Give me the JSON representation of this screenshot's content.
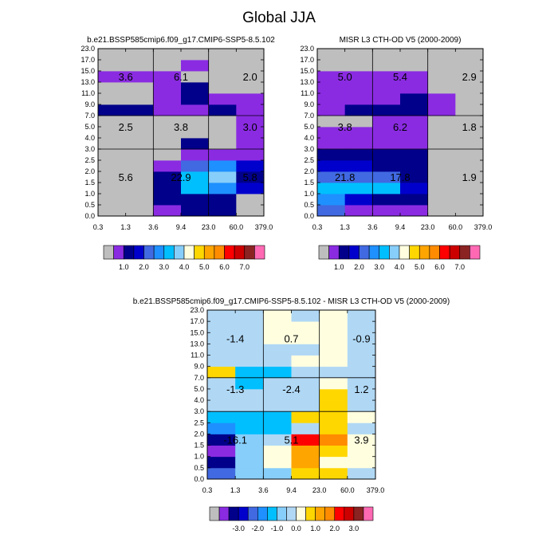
{
  "main_title": "Global JJA",
  "colors": {
    "top_scale": [
      "#bebebe",
      "#8a2be2",
      "#00008b",
      "#0000cd",
      "#4169e1",
      "#1e90ff",
      "#00bfff",
      "#87cefa",
      "#ffffe0",
      "#ffd700",
      "#ffa500",
      "#ff8c00",
      "#ff0000",
      "#cd0000",
      "#8b2323",
      "#ff69b4"
    ],
    "diff_scale": [
      "#bebebe",
      "#8a2be2",
      "#00008b",
      "#0000cd",
      "#4169e1",
      "#1e90ff",
      "#00bfff",
      "#87cefa",
      "#b0d8f5",
      "#ffffe0",
      "#ffd700",
      "#ffa500",
      "#ff8c00",
      "#ff0000",
      "#cd0000",
      "#8b2323",
      "#ff69b4"
    ]
  },
  "chart_data": [
    {
      "type": "heatmap",
      "title": "b.e21.BSSP585cmip6.f09_g17.CMIP6-SSP5-8.5.102",
      "x_tick_labels": [
        "0.3",
        "1.3",
        "3.6",
        "9.4",
        "23.0",
        "60.0",
        "379.0"
      ],
      "y_tick_labels": [
        "0.0",
        "0.5",
        "1.0",
        "1.5",
        "2.0",
        "2.5",
        "3.0",
        "4.0",
        "5.0",
        "7.0",
        "9.0",
        "11.0",
        "13.0",
        "15.0",
        "17.0",
        "23.0"
      ],
      "x_dividers": [
        2,
        4
      ],
      "y_dividers": [
        6,
        9
      ],
      "cell_color_index_rows_bottom_to_top": [
        [
          0,
          0,
          1,
          2,
          2,
          0
        ],
        [
          0,
          0,
          2,
          2,
          2,
          0
        ],
        [
          0,
          0,
          2,
          6,
          5,
          3
        ],
        [
          0,
          0,
          2,
          6,
          7,
          2
        ],
        [
          0,
          0,
          1,
          4,
          5,
          3
        ],
        [
          0,
          0,
          0,
          1,
          1,
          1
        ],
        [
          0,
          0,
          0,
          2,
          0,
          1
        ],
        [
          0,
          0,
          0,
          0,
          0,
          1
        ],
        [
          0,
          0,
          0,
          0,
          0,
          1
        ],
        [
          2,
          2,
          1,
          1,
          2,
          1
        ],
        [
          0,
          0,
          1,
          2,
          1,
          1
        ],
        [
          0,
          0,
          1,
          2,
          0,
          0
        ],
        [
          1,
          1,
          1,
          0,
          0,
          0
        ],
        [
          0,
          0,
          0,
          1,
          0,
          0
        ],
        [
          0,
          0,
          0,
          0,
          0,
          0
        ]
      ],
      "annotations": [
        {
          "text": "3.6",
          "x_index": 0.5,
          "y_index": 12.0
        },
        {
          "text": "6.1",
          "x_index": 2.5,
          "y_index": 12.0
        },
        {
          "text": "2.0",
          "x_index": 5.0,
          "y_index": 12.0
        },
        {
          "text": "2.5",
          "x_index": 0.5,
          "y_index": 7.5
        },
        {
          "text": "3.8",
          "x_index": 2.5,
          "y_index": 7.5
        },
        {
          "text": "3.0",
          "x_index": 5.0,
          "y_index": 7.5
        },
        {
          "text": "5.6",
          "x_index": 0.5,
          "y_index": 3.0
        },
        {
          "text": "22.9",
          "x_index": 2.5,
          "y_index": 3.0
        },
        {
          "text": "5.8",
          "x_index": 5.0,
          "y_index": 3.0
        }
      ],
      "colorbar_labels": [
        "1.0",
        "2.0",
        "3.0",
        "4.0",
        "5.0",
        "6.0",
        "7.0"
      ]
    },
    {
      "type": "heatmap",
      "title": "MISR L3 CTH-OD V5 (2000-2009)",
      "x_tick_labels": [
        "0.3",
        "1.3",
        "3.6",
        "9.4",
        "23.0",
        "60.0",
        "379.0"
      ],
      "y_tick_labels": [
        "0.0",
        "0.5",
        "1.0",
        "1.5",
        "2.0",
        "2.5",
        "3.0",
        "4.0",
        "5.0",
        "7.0",
        "9.0",
        "11.0",
        "13.0",
        "15.0",
        "17.0",
        "23.0"
      ],
      "x_dividers": [
        2,
        4
      ],
      "y_dividers": [
        6,
        9
      ],
      "cell_color_index_rows_bottom_to_top": [
        [
          4,
          1,
          1,
          1,
          0,
          0
        ],
        [
          5,
          3,
          2,
          2,
          0,
          0
        ],
        [
          6,
          6,
          6,
          3,
          0,
          0
        ],
        [
          4,
          4,
          4,
          2,
          0,
          0
        ],
        [
          3,
          3,
          2,
          2,
          0,
          0
        ],
        [
          2,
          2,
          2,
          2,
          0,
          0
        ],
        [
          1,
          1,
          1,
          1,
          0,
          0
        ],
        [
          1,
          1,
          1,
          1,
          0,
          0
        ],
        [
          0,
          0,
          1,
          1,
          0,
          0
        ],
        [
          1,
          2,
          2,
          2,
          1,
          0
        ],
        [
          1,
          1,
          1,
          2,
          1,
          0
        ],
        [
          1,
          1,
          1,
          1,
          0,
          0
        ],
        [
          1,
          1,
          1,
          1,
          0,
          0
        ],
        [
          0,
          0,
          0,
          0,
          0,
          0
        ],
        [
          0,
          0,
          0,
          0,
          0,
          0
        ]
      ],
      "annotations": [
        {
          "text": "5.0",
          "x_index": 0.5,
          "y_index": 12.0
        },
        {
          "text": "5.4",
          "x_index": 2.5,
          "y_index": 12.0
        },
        {
          "text": "2.9",
          "x_index": 5.0,
          "y_index": 12.0
        },
        {
          "text": "3.8",
          "x_index": 0.5,
          "y_index": 7.5
        },
        {
          "text": "6.2",
          "x_index": 2.5,
          "y_index": 7.5
        },
        {
          "text": "1.8",
          "x_index": 5.0,
          "y_index": 7.5
        },
        {
          "text": "21.8",
          "x_index": 0.5,
          "y_index": 3.0
        },
        {
          "text": "17.8",
          "x_index": 2.5,
          "y_index": 3.0
        },
        {
          "text": "1.9",
          "x_index": 5.0,
          "y_index": 3.0
        }
      ],
      "colorbar_labels": [
        "1.0",
        "2.0",
        "3.0",
        "4.0",
        "5.0",
        "6.0",
        "7.0"
      ]
    },
    {
      "type": "heatmap",
      "title": "b.e21.BSSP585cmip6.f09_g17.CMIP6-SSP5-8.5.102 - MISR L3 CTH-OD V5 (2000-2009)",
      "x_tick_labels": [
        "0.3",
        "1.3",
        "3.6",
        "9.4",
        "23.0",
        "60.0",
        "379.0"
      ],
      "y_tick_labels": [
        "0.0",
        "0.5",
        "1.0",
        "1.5",
        "2.0",
        "2.5",
        "3.0",
        "4.0",
        "5.0",
        "7.0",
        "9.0",
        "11.0",
        "13.0",
        "15.0",
        "17.0",
        "23.0"
      ],
      "x_dividers": [
        2,
        4
      ],
      "y_dividers": [
        6,
        9
      ],
      "cell_color_index_rows_bottom_to_top": [
        [
          4,
          7,
          7,
          10,
          10,
          8
        ],
        [
          2,
          7,
          9,
          11,
          9,
          9
        ],
        [
          1,
          7,
          9,
          11,
          10,
          9
        ],
        [
          2,
          7,
          8,
          13,
          12,
          9
        ],
        [
          5,
          6,
          6,
          8,
          10,
          8
        ],
        [
          6,
          6,
          6,
          10,
          10,
          9
        ],
        [
          8,
          8,
          8,
          8,
          10,
          8
        ],
        [
          8,
          8,
          8,
          8,
          10,
          8
        ],
        [
          8,
          6,
          8,
          8,
          9,
          8
        ],
        [
          10,
          6,
          6,
          8,
          8,
          8
        ],
        [
          8,
          8,
          8,
          9,
          9,
          8
        ],
        [
          8,
          8,
          8,
          8,
          9,
          8
        ],
        [
          8,
          8,
          9,
          9,
          9,
          8
        ],
        [
          8,
          8,
          9,
          9,
          9,
          8
        ],
        [
          8,
          8,
          9,
          8,
          9,
          8
        ]
      ],
      "annotations": [
        {
          "text": "-1.4",
          "x_index": 0.5,
          "y_index": 12.0
        },
        {
          "text": "0.7",
          "x_index": 2.5,
          "y_index": 12.0
        },
        {
          "text": "-0.9",
          "x_index": 5.0,
          "y_index": 12.0
        },
        {
          "text": "-1.3",
          "x_index": 0.5,
          "y_index": 7.5
        },
        {
          "text": "-2.4",
          "x_index": 2.5,
          "y_index": 7.5
        },
        {
          "text": "1.2",
          "x_index": 5.0,
          "y_index": 7.5
        },
        {
          "text": "-16.1",
          "x_index": 0.5,
          "y_index": 3.0
        },
        {
          "text": "5.1",
          "x_index": 2.5,
          "y_index": 3.0
        },
        {
          "text": "3.9",
          "x_index": 5.0,
          "y_index": 3.0
        }
      ],
      "colorbar_labels": [
        "-3.0",
        "-2.0",
        "-1.0",
        "0.0",
        "1.0",
        "2.0",
        "3.0"
      ]
    }
  ]
}
